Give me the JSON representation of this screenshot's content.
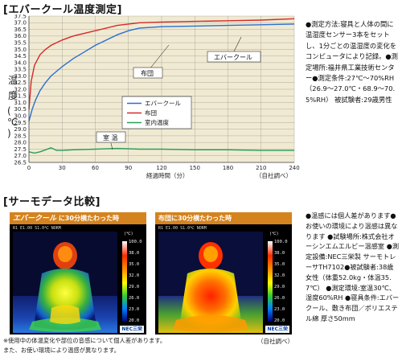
{
  "section1": {
    "title": "[エバークール温度測定]"
  },
  "chart_data": {
    "type": "line",
    "ylabel": "温度（℃）",
    "xlabel": "経過時間（分）",
    "source": "（自社調べ）",
    "xlim": [
      0,
      240
    ],
    "ylim": [
      26.5,
      37.5
    ],
    "xticks": [
      0,
      30,
      60,
      90,
      120,
      150,
      180,
      210,
      240
    ],
    "yticks": [
      "26.5",
      "27.0",
      "27.5",
      "28.0",
      "28.5",
      "29.0",
      "29.5",
      "30.0",
      "30.5",
      "31.0",
      "31.5",
      "32.0",
      "32.5",
      "33.0",
      "33.5",
      "34.0",
      "34.5",
      "35.0",
      "35.5",
      "36.0",
      "36.5",
      "37.0",
      "37.5"
    ],
    "grid": true,
    "legend_position": "center",
    "series": [
      {
        "name": "エバークール",
        "color": "#2a6fce",
        "x": [
          0,
          3,
          6,
          10,
          15,
          20,
          30,
          40,
          50,
          60,
          70,
          80,
          90,
          100,
          120,
          150,
          180,
          210,
          240
        ],
        "y": [
          29.6,
          30.5,
          31.2,
          31.9,
          32.5,
          33.0,
          33.7,
          34.3,
          34.8,
          35.3,
          35.7,
          36.1,
          36.4,
          36.6,
          36.7,
          36.75,
          36.8,
          36.85,
          36.9
        ]
      },
      {
        "name": "布団",
        "color": "#d22a2a",
        "x": [
          0,
          2,
          5,
          10,
          15,
          20,
          30,
          40,
          60,
          80,
          100,
          120,
          150,
          180,
          210,
          240
        ],
        "y": [
          30.5,
          32.6,
          33.8,
          34.6,
          35.0,
          35.3,
          35.7,
          36.0,
          36.4,
          36.8,
          37.0,
          37.05,
          37.1,
          37.15,
          37.2,
          37.3
        ]
      },
      {
        "name": "室内温度",
        "color": "#2a9e5a",
        "x": [
          0,
          5,
          10,
          20,
          25,
          30,
          40,
          60,
          80,
          100,
          120,
          150,
          180,
          210,
          240
        ],
        "y": [
          27.3,
          27.2,
          27.3,
          27.6,
          27.4,
          27.4,
          27.45,
          27.5,
          27.55,
          27.5,
          27.5,
          27.45,
          27.45,
          27.4,
          27.4
        ]
      }
    ],
    "callouts": [
      "布団",
      "エバークール",
      "室 温"
    ]
  },
  "notes1": "●測定方法:寝具と人体の間に温湿度センサー3本をセットし、1分ごとの温湿度の変化をコンピュータにより記録。●測定場所:福井県工業技術センター●測定条件:27℃〜70%RH（26.9〜27.0℃・68.9〜70.5%RH） 被試験者:29歳男性",
  "section2": {
    "title": "[サーモデータ比較]"
  },
  "thermo1": {
    "brand": "エバークール",
    "caption": "に30分横たわった時"
  },
  "thermo2": {
    "caption": "布団に30分横たわった時"
  },
  "thermo_osd": "R1 E1.00 S1.0℃ NORM",
  "thermo_scale": {
    "unit": "(℃)",
    "labels": [
      "100.0",
      "38.0",
      "35.0",
      "32.0",
      "29.0",
      "26.0",
      "23.0",
      "20.0"
    ]
  },
  "thermo_logo": "NEC三栄",
  "source2": "（自社調べ）",
  "notes2": "●温感には個人差があります●お使いの環境により温感は異なります ●試験場所:株式会社オーシンエムエルビー温感室 ●測定設備:NEC三栄製 サーモトレーサTH7102●被試験者:38歳女性（体重52.0kg・体温35.7℃） ●測定環境:室温30℃、湿度60%RH ●寝具条件:エバークール、敷き布団／ポリエステル綿 厚さ50mm",
  "footnote": "※使用中の体温変化や部位の音感について個人差があります。\nまた、お使い環境により温感が異なります。"
}
